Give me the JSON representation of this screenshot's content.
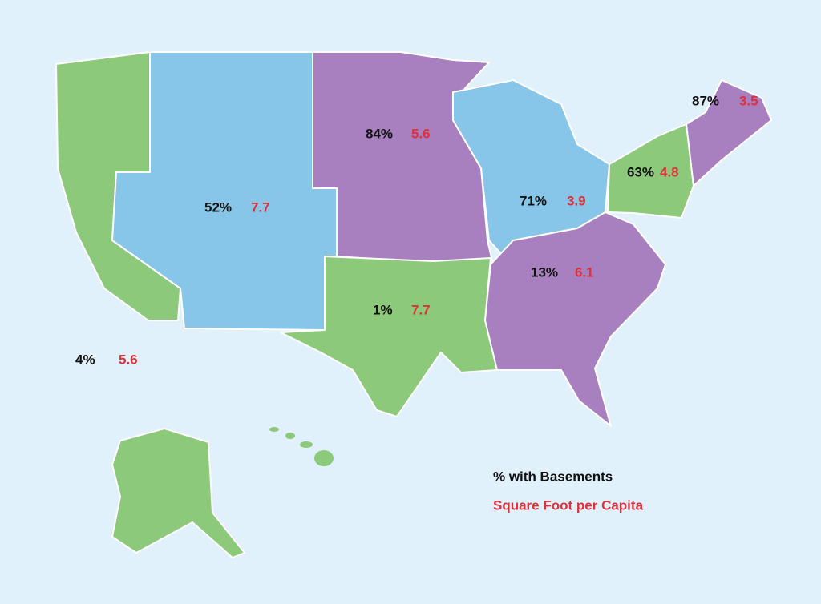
{
  "regions": [
    {
      "basements": "84%",
      "sqft": "5.6"
    },
    {
      "basements": "87%",
      "sqft": "3.5"
    },
    {
      "basements": "63%",
      "sqft": "4.8"
    },
    {
      "basements": "52%",
      "sqft": "7.7"
    },
    {
      "basements": "71%",
      "sqft": "3.9"
    },
    {
      "basements": "13%",
      "sqft": "6.1"
    },
    {
      "basements": "1%",
      "sqft": "7.7"
    },
    {
      "basements": "4%",
      "sqft": "5.6"
    }
  ],
  "legend": {
    "basements": "% with Basements",
    "sqft": "Square Foot per Capita"
  }
}
